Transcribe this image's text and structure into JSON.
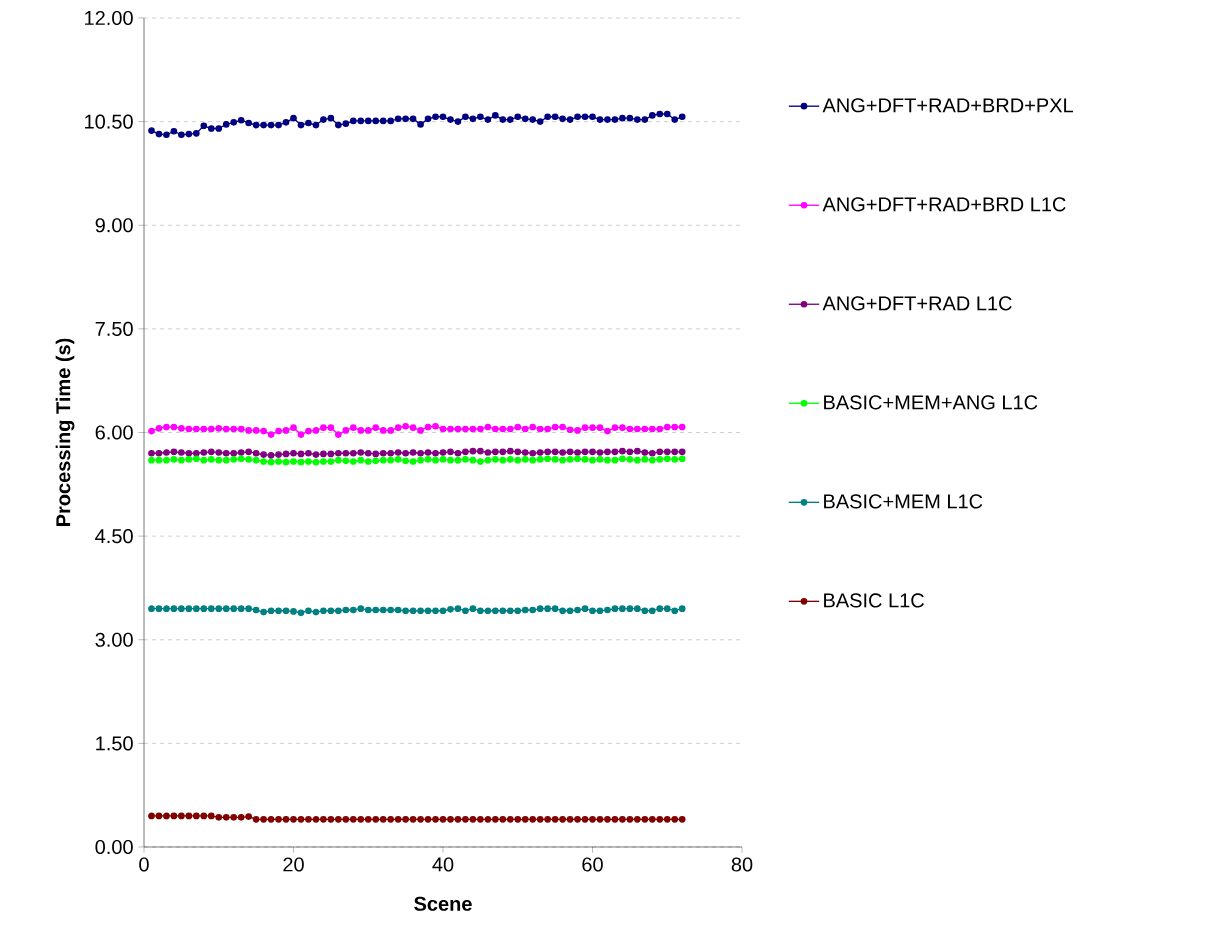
{
  "chart_data": {
    "type": "line",
    "xlabel": "Scene",
    "ylabel": "Processing Time (s)",
    "x": [
      1,
      2,
      3,
      4,
      5,
      6,
      7,
      8,
      9,
      10,
      11,
      12,
      13,
      14,
      15,
      16,
      17,
      18,
      19,
      20,
      21,
      22,
      23,
      24,
      25,
      26,
      27,
      28,
      29,
      30,
      31,
      32,
      33,
      34,
      35,
      36,
      37,
      38,
      39,
      40,
      41,
      42,
      43,
      44,
      45,
      46,
      47,
      48,
      49,
      50,
      51,
      52,
      53,
      54,
      55,
      56,
      57,
      58,
      59,
      60,
      61,
      62,
      63,
      64,
      65,
      66,
      67,
      68,
      69,
      70,
      71,
      72
    ],
    "series": [
      {
        "name": "ANG+DFT+RAD+BRD+PXL",
        "color": "#000080",
        "values": [
          10.37,
          10.32,
          10.31,
          10.36,
          10.31,
          10.32,
          10.33,
          10.44,
          10.4,
          10.4,
          10.46,
          10.49,
          10.52,
          10.48,
          10.45,
          10.45,
          10.45,
          10.45,
          10.49,
          10.55,
          10.45,
          10.48,
          10.45,
          10.53,
          10.55,
          10.45,
          10.47,
          10.51,
          10.51,
          10.51,
          10.51,
          10.51,
          10.51,
          10.54,
          10.54,
          10.54,
          10.46,
          10.54,
          10.57,
          10.57,
          10.53,
          10.5,
          10.57,
          10.54,
          10.57,
          10.53,
          10.59,
          10.53,
          10.53,
          10.57,
          10.54,
          10.53,
          10.5,
          10.57,
          10.57,
          10.54,
          10.53,
          10.57,
          10.57,
          10.57,
          10.53,
          10.53,
          10.53,
          10.55,
          10.55,
          10.53,
          10.53,
          10.59,
          10.61,
          10.61,
          10.53,
          10.57
        ]
      },
      {
        "name": "ANG+DFT+RAD+BRD L1C",
        "color": "#ff00ff",
        "values": [
          6.02,
          6.06,
          6.08,
          6.08,
          6.06,
          6.05,
          6.05,
          6.05,
          6.05,
          6.06,
          6.05,
          6.05,
          6.05,
          6.03,
          6.03,
          6.02,
          5.97,
          6.02,
          6.03,
          6.07,
          5.97,
          6.02,
          6.03,
          6.07,
          6.07,
          5.97,
          6.03,
          6.07,
          6.03,
          6.03,
          6.07,
          6.03,
          6.03,
          6.07,
          6.09,
          6.07,
          6.03,
          6.08,
          6.09,
          6.05,
          6.05,
          6.05,
          6.05,
          6.05,
          6.05,
          6.08,
          6.05,
          6.05,
          6.05,
          6.08,
          6.05,
          6.08,
          6.05,
          6.05,
          6.08,
          6.08,
          6.04,
          6.03,
          6.07,
          6.07,
          6.07,
          6.02,
          6.07,
          6.07,
          6.05,
          6.05,
          6.05,
          6.05,
          6.05,
          6.08,
          6.08,
          6.08
        ]
      },
      {
        "name": "ANG+DFT+RAD L1C",
        "color": "#800080",
        "values": [
          5.7,
          5.7,
          5.71,
          5.72,
          5.71,
          5.7,
          5.7,
          5.71,
          5.72,
          5.71,
          5.7,
          5.7,
          5.71,
          5.72,
          5.7,
          5.68,
          5.67,
          5.68,
          5.69,
          5.7,
          5.69,
          5.7,
          5.68,
          5.69,
          5.69,
          5.7,
          5.7,
          5.7,
          5.71,
          5.7,
          5.69,
          5.7,
          5.7,
          5.71,
          5.7,
          5.71,
          5.7,
          5.71,
          5.7,
          5.71,
          5.72,
          5.7,
          5.72,
          5.73,
          5.73,
          5.71,
          5.72,
          5.72,
          5.73,
          5.72,
          5.71,
          5.7,
          5.71,
          5.72,
          5.72,
          5.71,
          5.72,
          5.71,
          5.72,
          5.72,
          5.71,
          5.72,
          5.72,
          5.73,
          5.72,
          5.73,
          5.71,
          5.7,
          5.72,
          5.72,
          5.72,
          5.72
        ]
      },
      {
        "name": "BASIC+MEM+ANG L1C",
        "color": "#00ff00",
        "values": [
          5.6,
          5.6,
          5.6,
          5.61,
          5.6,
          5.61,
          5.62,
          5.6,
          5.61,
          5.6,
          5.6,
          5.61,
          5.62,
          5.61,
          5.6,
          5.58,
          5.57,
          5.58,
          5.57,
          5.58,
          5.57,
          5.58,
          5.57,
          5.58,
          5.58,
          5.6,
          5.59,
          5.58,
          5.6,
          5.58,
          5.59,
          5.6,
          5.6,
          5.61,
          5.59,
          5.58,
          5.6,
          5.61,
          5.6,
          5.61,
          5.6,
          5.6,
          5.61,
          5.6,
          5.58,
          5.6,
          5.61,
          5.6,
          5.61,
          5.6,
          5.61,
          5.6,
          5.61,
          5.62,
          5.61,
          5.6,
          5.61,
          5.62,
          5.61,
          5.6,
          5.61,
          5.6,
          5.6,
          5.62,
          5.61,
          5.6,
          5.61,
          5.6,
          5.61,
          5.62,
          5.61,
          5.62
        ]
      },
      {
        "name": "BASIC+MEM L1C",
        "color": "#008080",
        "values": [
          3.45,
          3.45,
          3.45,
          3.45,
          3.45,
          3.45,
          3.45,
          3.45,
          3.45,
          3.45,
          3.45,
          3.45,
          3.45,
          3.45,
          3.43,
          3.4,
          3.42,
          3.42,
          3.42,
          3.41,
          3.39,
          3.42,
          3.4,
          3.42,
          3.42,
          3.42,
          3.43,
          3.43,
          3.45,
          3.43,
          3.43,
          3.43,
          3.43,
          3.43,
          3.42,
          3.42,
          3.42,
          3.42,
          3.42,
          3.42,
          3.44,
          3.45,
          3.42,
          3.45,
          3.42,
          3.42,
          3.42,
          3.42,
          3.42,
          3.42,
          3.43,
          3.43,
          3.45,
          3.45,
          3.45,
          3.42,
          3.42,
          3.43,
          3.45,
          3.42,
          3.42,
          3.43,
          3.45,
          3.45,
          3.45,
          3.45,
          3.42,
          3.42,
          3.45,
          3.45,
          3.42,
          3.45
        ]
      },
      {
        "name": "BASIC L1C",
        "color": "#800000",
        "values": [
          0.45,
          0.45,
          0.45,
          0.45,
          0.45,
          0.45,
          0.45,
          0.45,
          0.45,
          0.43,
          0.43,
          0.43,
          0.43,
          0.44,
          0.4,
          0.4,
          0.4,
          0.4,
          0.4,
          0.4,
          0.4,
          0.4,
          0.4,
          0.4,
          0.4,
          0.4,
          0.4,
          0.4,
          0.4,
          0.4,
          0.4,
          0.4,
          0.4,
          0.4,
          0.4,
          0.4,
          0.4,
          0.4,
          0.4,
          0.4,
          0.4,
          0.4,
          0.4,
          0.4,
          0.4,
          0.4,
          0.4,
          0.4,
          0.4,
          0.4,
          0.4,
          0.4,
          0.4,
          0.4,
          0.4,
          0.4,
          0.4,
          0.4,
          0.4,
          0.4,
          0.4,
          0.4,
          0.4,
          0.4,
          0.4,
          0.4,
          0.4,
          0.4,
          0.4,
          0.4,
          0.4,
          0.4
        ]
      }
    ],
    "xlim": [
      0,
      80
    ],
    "xticks": [
      0,
      20,
      40,
      60,
      80
    ],
    "ylim": [
      0,
      12
    ],
    "yticks": [
      {
        "value": 0,
        "label": "0.00"
      },
      {
        "value": 1.5,
        "label": "1.50"
      },
      {
        "value": 3,
        "label": "3.00"
      },
      {
        "value": 4.5,
        "label": "4.50"
      },
      {
        "value": 6,
        "label": "6.00"
      },
      {
        "value": 7.5,
        "label": "7.50"
      },
      {
        "value": 9,
        "label": "9.00"
      },
      {
        "value": 10.5,
        "label": "10.50"
      },
      {
        "value": 12,
        "label": "12.00"
      }
    ],
    "grid": "y",
    "legend": "right",
    "marker": "circle",
    "line_style": "solid"
  }
}
